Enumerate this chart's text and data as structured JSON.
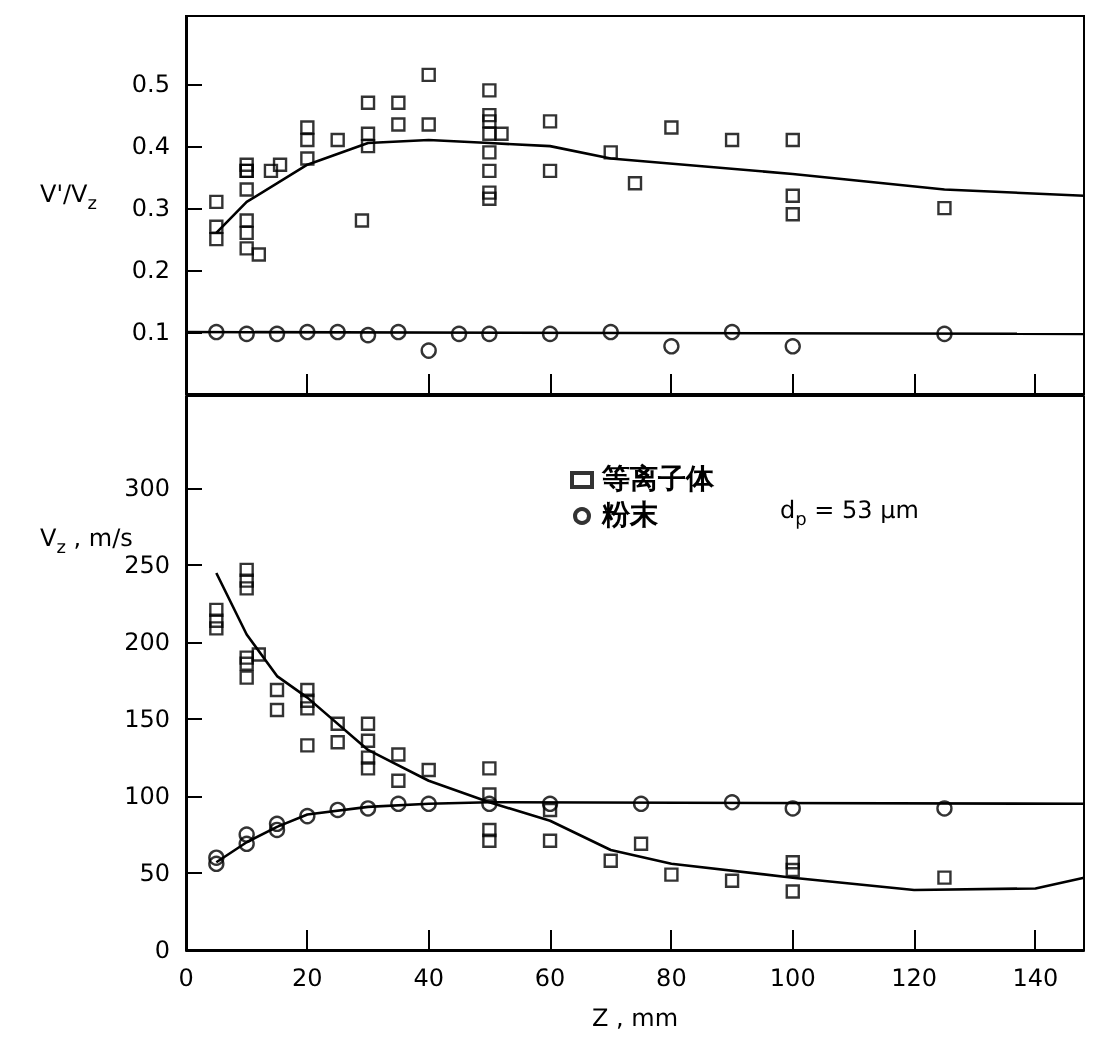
{
  "chart_data": [
    {
      "type": "scatter",
      "ylabel": "V'/V$_{z}$",
      "xlim": [
        0,
        148
      ],
      "xticks": [
        0,
        20,
        40,
        60,
        80,
        100,
        120,
        140
      ],
      "ylim": [
        0,
        0.61
      ],
      "yticks": [
        0.1,
        0.2,
        0.3,
        0.4,
        0.5
      ],
      "tick_labels": "y",
      "grid": false,
      "legend": false,
      "series": [
        {
          "type": "scatter",
          "marker": "square",
          "color": "#000000",
          "x": [
            5,
            5,
            5,
            10,
            10,
            10,
            10,
            10,
            10,
            10,
            12,
            14,
            15.5,
            20,
            20,
            20,
            25,
            29,
            30,
            30,
            30,
            35,
            35,
            40,
            40,
            50,
            50,
            50,
            50,
            50,
            50,
            50,
            50,
            52,
            60,
            60,
            70,
            74,
            80,
            90,
            100,
            100,
            100,
            125
          ],
          "values": [
            0.25,
            0.27,
            0.31,
            0.36,
            0.36,
            0.37,
            0.33,
            0.28,
            0.26,
            0.235,
            0.225,
            0.36,
            0.37,
            0.43,
            0.41,
            0.38,
            0.41,
            0.28,
            0.47,
            0.42,
            0.4,
            0.47,
            0.435,
            0.515,
            0.435,
            0.49,
            0.45,
            0.44,
            0.42,
            0.39,
            0.36,
            0.325,
            0.315,
            0.42,
            0.44,
            0.36,
            0.39,
            0.34,
            0.43,
            0.41,
            0.41,
            0.32,
            0.29,
            0.3
          ]
        },
        {
          "type": "line",
          "marker": "none",
          "color": "#000000",
          "x": [
            5,
            10,
            20,
            30,
            40,
            50,
            60,
            70,
            100,
            125,
            148
          ],
          "values": [
            0.26,
            0.31,
            0.37,
            0.405,
            0.41,
            0.405,
            0.4,
            0.38,
            0.355,
            0.33,
            0.32
          ]
        },
        {
          "type": "scatter",
          "marker": "circle",
          "color": "#000000",
          "x": [
            5,
            10,
            15,
            20,
            25,
            30,
            35,
            40,
            45,
            50,
            60,
            70,
            80,
            90,
            100,
            125
          ],
          "values": [
            0.1,
            0.097,
            0.097,
            0.1,
            0.1,
            0.095,
            0.1,
            0.07,
            0.097,
            0.097,
            0.097,
            0.1,
            0.077,
            0.1,
            0.077,
            0.097
          ]
        },
        {
          "type": "line",
          "marker": "none",
          "color": "#000000",
          "x": [
            0,
            148
          ],
          "values": [
            0.1,
            0.097
          ]
        }
      ]
    },
    {
      "type": "scatter",
      "xlabel": "Z , mm",
      "ylabel": "V$_{z}$ , m/s",
      "xlim": [
        0,
        148
      ],
      "xticks": [
        0,
        20,
        40,
        60,
        80,
        100,
        120,
        140
      ],
      "ylim": [
        0,
        360
      ],
      "yticks": [
        0,
        50,
        100,
        150,
        200,
        250,
        300
      ],
      "grid": false,
      "legend": "top",
      "annotations": [
        "d$_{p}$ = 53 μm"
      ],
      "series": [
        {
          "name": "等离子体",
          "type": "scatter",
          "marker": "square",
          "color": "#000000",
          "x": [
            5,
            5,
            5,
            10,
            10,
            10,
            10,
            10,
            10,
            12,
            15,
            15,
            20,
            20,
            20,
            20,
            25,
            25,
            30,
            30,
            30,
            30,
            35,
            35,
            40,
            50,
            50,
            50,
            50,
            60,
            60,
            70,
            75,
            80,
            90,
            100,
            100,
            100,
            125
          ],
          "values": [
            221,
            214,
            209,
            247,
            240,
            235,
            190,
            186,
            177,
            192,
            169,
            156,
            169,
            162,
            157,
            133,
            147,
            135,
            147,
            136,
            125,
            118,
            127,
            110,
            117,
            118,
            101,
            78,
            71,
            91,
            71,
            58,
            69,
            49,
            45,
            57,
            52,
            38,
            47
          ]
        },
        {
          "type": "line",
          "marker": "none",
          "color": "#000000",
          "x": [
            5,
            10,
            15,
            20,
            30,
            40,
            50,
            60,
            70,
            80,
            100,
            120,
            140,
            148
          ],
          "values": [
            245,
            205,
            178,
            164,
            130,
            110,
            96,
            84,
            65,
            56,
            47,
            39,
            40,
            47
          ]
        },
        {
          "name": "粉末",
          "type": "scatter",
          "marker": "circle",
          "color": "#000000",
          "x": [
            5,
            5,
            10,
            10,
            15,
            15,
            20,
            25,
            30,
            35,
            40,
            50,
            60,
            75,
            90,
            100,
            125
          ],
          "values": [
            56,
            60,
            69,
            75,
            82,
            78,
            87,
            91,
            92,
            95,
            95,
            95,
            95,
            95,
            96,
            92,
            92
          ]
        },
        {
          "type": "line",
          "marker": "none",
          "color": "#000000",
          "x": [
            5,
            10,
            15,
            20,
            30,
            40,
            50,
            148
          ],
          "values": [
            57,
            70,
            80,
            88,
            93,
            95,
            96,
            95
          ]
        }
      ]
    }
  ]
}
